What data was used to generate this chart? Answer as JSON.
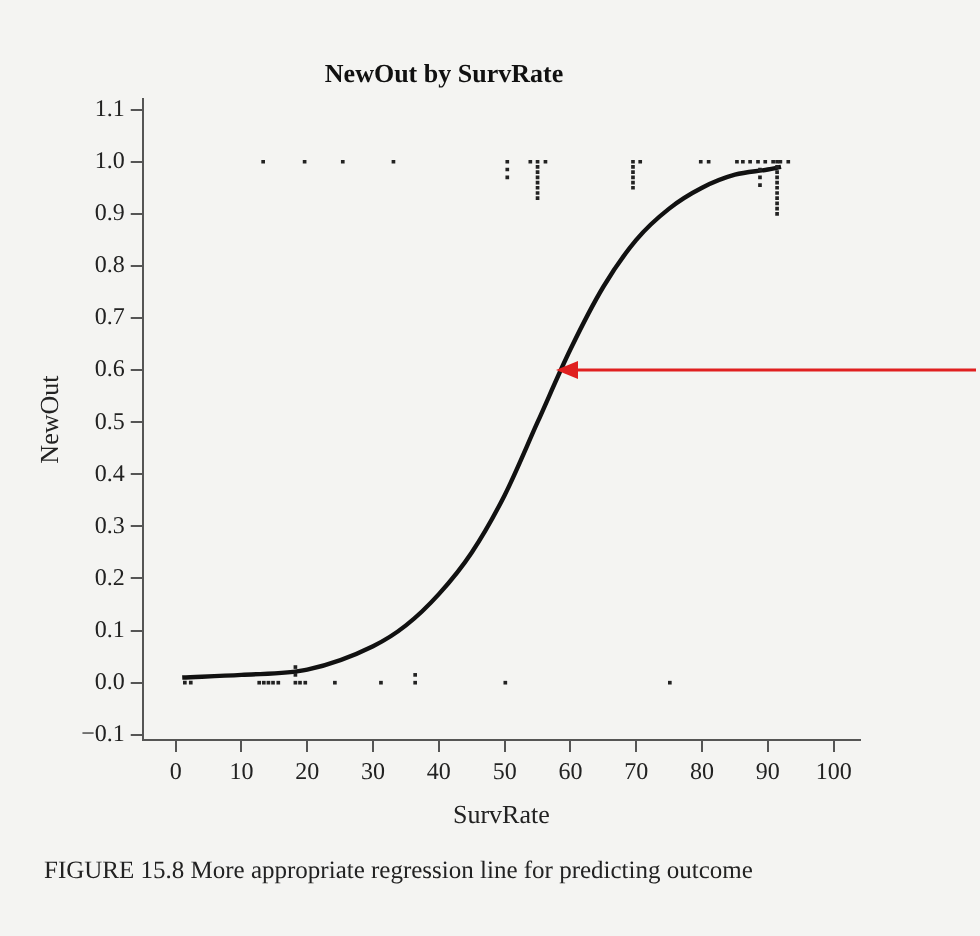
{
  "chart_data": {
    "type": "scatter",
    "title": "NewOut by SurvRate",
    "xlabel": "SurvRate",
    "ylabel": "NewOut",
    "annotations": [
      "FIGURE 15.8 More appropriate regression line for predicting outcome"
    ],
    "xlim": [
      -5,
      104
    ],
    "xticks": [
      0,
      10,
      20,
      30,
      40,
      50,
      60,
      70,
      80,
      90,
      100
    ],
    "ylim": [
      -0.11,
      1.12
    ],
    "yticks": [
      {
        "value": -0.1,
        "label": "−0.1"
      },
      {
        "value": 0,
        "label": "0.0"
      },
      0.1,
      0.2,
      0.3,
      0.4,
      0.5,
      0.6,
      0.7,
      0.8,
      0.9,
      {
        "value": 1,
        "label": "1.0"
      },
      1.1
    ],
    "grid": false,
    "legend": false,
    "marker": "square",
    "series": [
      {
        "type": "scatter",
        "color": "#222222",
        "x": [
          13.3,
          19.6,
          25.4,
          33.1,
          50.4,
          50.4,
          50.4,
          53.9,
          55,
          55,
          55,
          55,
          55,
          55,
          55,
          55,
          56.2,
          69.5,
          69.5,
          69.5,
          69.5,
          69.5,
          69.5,
          70.6,
          79.8,
          81,
          85.3,
          86.2,
          87.3,
          88.5,
          88.8,
          88.8,
          88.8,
          89.6,
          90.8,
          91.4,
          91.4,
          91.4,
          91.4,
          91.4,
          91.4,
          91.4,
          91.4,
          91.4,
          91.4,
          91.4,
          91.9,
          93.1,
          1.4,
          2.3,
          12.7,
          13.4,
          14.1,
          14.8,
          15.6,
          18.2,
          18.2,
          18.2,
          18.9,
          19.7,
          24.2,
          31.2,
          36.4,
          36.4,
          50.1,
          75.1
        ],
        "values": [
          1,
          1,
          1,
          1,
          1,
          0.985,
          0.97,
          1,
          1,
          0.99,
          0.98,
          0.97,
          0.96,
          0.95,
          0.94,
          0.93,
          1,
          1,
          0.99,
          0.98,
          0.97,
          0.96,
          0.95,
          1,
          1,
          1,
          1,
          1,
          1,
          1,
          0.985,
          0.97,
          0.955,
          1,
          1,
          1,
          0.99,
          0.98,
          0.97,
          0.96,
          0.95,
          0.94,
          0.93,
          0.92,
          0.91,
          0.9,
          1,
          1,
          0,
          0,
          0,
          0,
          0,
          0,
          0,
          0,
          0.015,
          0.03,
          0,
          0,
          0,
          0,
          0,
          0.015,
          0,
          0
        ]
      },
      {
        "type": "line",
        "color": "#111111",
        "marker": "none",
        "x": [
          1,
          10,
          20,
          30,
          35,
          40,
          45,
          50,
          55,
          60,
          65,
          70,
          75,
          80,
          85,
          90,
          92
        ],
        "values": [
          0.01,
          0.015,
          0.025,
          0.07,
          0.11,
          0.17,
          0.25,
          0.36,
          0.5,
          0.64,
          0.76,
          0.85,
          0.91,
          0.95,
          0.975,
          0.985,
          0.99
        ]
      }
    ]
  }
}
